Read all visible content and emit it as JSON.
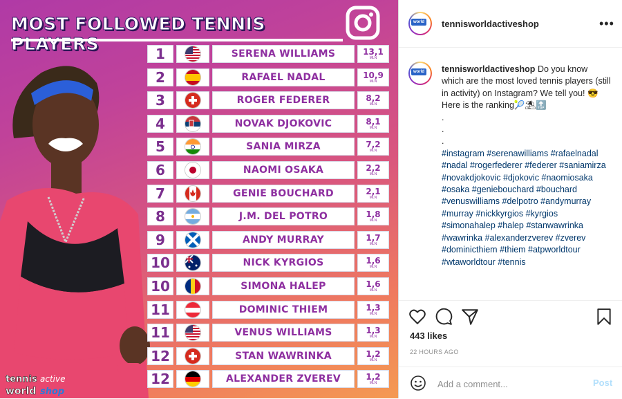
{
  "image": {
    "title": "MOST FOLLOWED TENNIS PLAYERS",
    "watermark": {
      "line1": "tennis",
      "line2": "world",
      "line3": "active",
      "line4": "shop"
    },
    "unit": "MLN",
    "rows": [
      {
        "rank": "1",
        "flag": "us",
        "name": "SERENA WILLIAMS",
        "followers": "13,1"
      },
      {
        "rank": "2",
        "flag": "es",
        "name": "RAFAEL NADAL",
        "followers": "10,9"
      },
      {
        "rank": "3",
        "flag": "ch",
        "name": "ROGER FEDERER",
        "followers": "8,2"
      },
      {
        "rank": "4",
        "flag": "rs",
        "name": "NOVAK DJOKOVIC",
        "followers": "8,1"
      },
      {
        "rank": "5",
        "flag": "in",
        "name": "SANIA MIRZA",
        "followers": "7,2"
      },
      {
        "rank": "6",
        "flag": "jp",
        "name": "NAOMI OSAKA",
        "followers": "2,2"
      },
      {
        "rank": "7",
        "flag": "ca",
        "name": "GENIE BOUCHARD",
        "followers": "2,1"
      },
      {
        "rank": "8",
        "flag": "ar",
        "name": "J.M. DEL POTRO",
        "followers": "1,8"
      },
      {
        "rank": "9",
        "flag": "sc",
        "name": "ANDY MURRAY",
        "followers": "1,7"
      },
      {
        "rank": "10",
        "flag": "au",
        "name": "NICK KYRGIOS",
        "followers": "1,6"
      },
      {
        "rank": "10",
        "flag": "ro",
        "name": "SIMONA HALEP",
        "followers": "1,6"
      },
      {
        "rank": "11",
        "flag": "at",
        "name": "DOMINIC THIEM",
        "followers": "1,3"
      },
      {
        "rank": "11",
        "flag": "us",
        "name": "VENUS WILLIAMS",
        "followers": "1,3"
      },
      {
        "rank": "12",
        "flag": "ch",
        "name": "STAN WAWRINKA",
        "followers": "1,2"
      },
      {
        "rank": "12",
        "flag": "de",
        "name": "ALEXANDER ZVEREV",
        "followers": "1,2"
      }
    ]
  },
  "header": {
    "username": "tennisworldactiveshop",
    "avatar_logo_text": "world",
    "more_icon": "more-horizontal-icon"
  },
  "caption": {
    "username": "tennisworldactiveshop",
    "text": "Do you know which are the most loved tennis players (still in activity) on Instagram? We tell you! 😎",
    "line2": "Here is the ranking🎾⛱🔝",
    "dots": [
      ".",
      ".",
      "."
    ],
    "hashtags": "#instagram #serenawilliams #rafaelnadal #nadal #rogerfederer #federer #saniamirza #novakdjokovic #djokovic #naomiosaka #osaka #geniebouchard #bouchard #venuswilliams #delpotro #andymurray #murray #nickkyrgios #kyrgios #simonahalep #halep #stanwawrinka #wawrinka #alexanderzverev #zverev #dominicthiem #thiem #atpworldtour #wtaworldtour #tennis"
  },
  "actions": {
    "likes": "443 likes",
    "time": "22 HOURS AGO"
  },
  "comment": {
    "placeholder": "Add a comment...",
    "post_label": "Post"
  },
  "colors": {
    "link": "#00376b",
    "post_button": "#b2dffc",
    "gradient_top": "#b03aa6",
    "gradient_bottom": "#f49a52"
  }
}
